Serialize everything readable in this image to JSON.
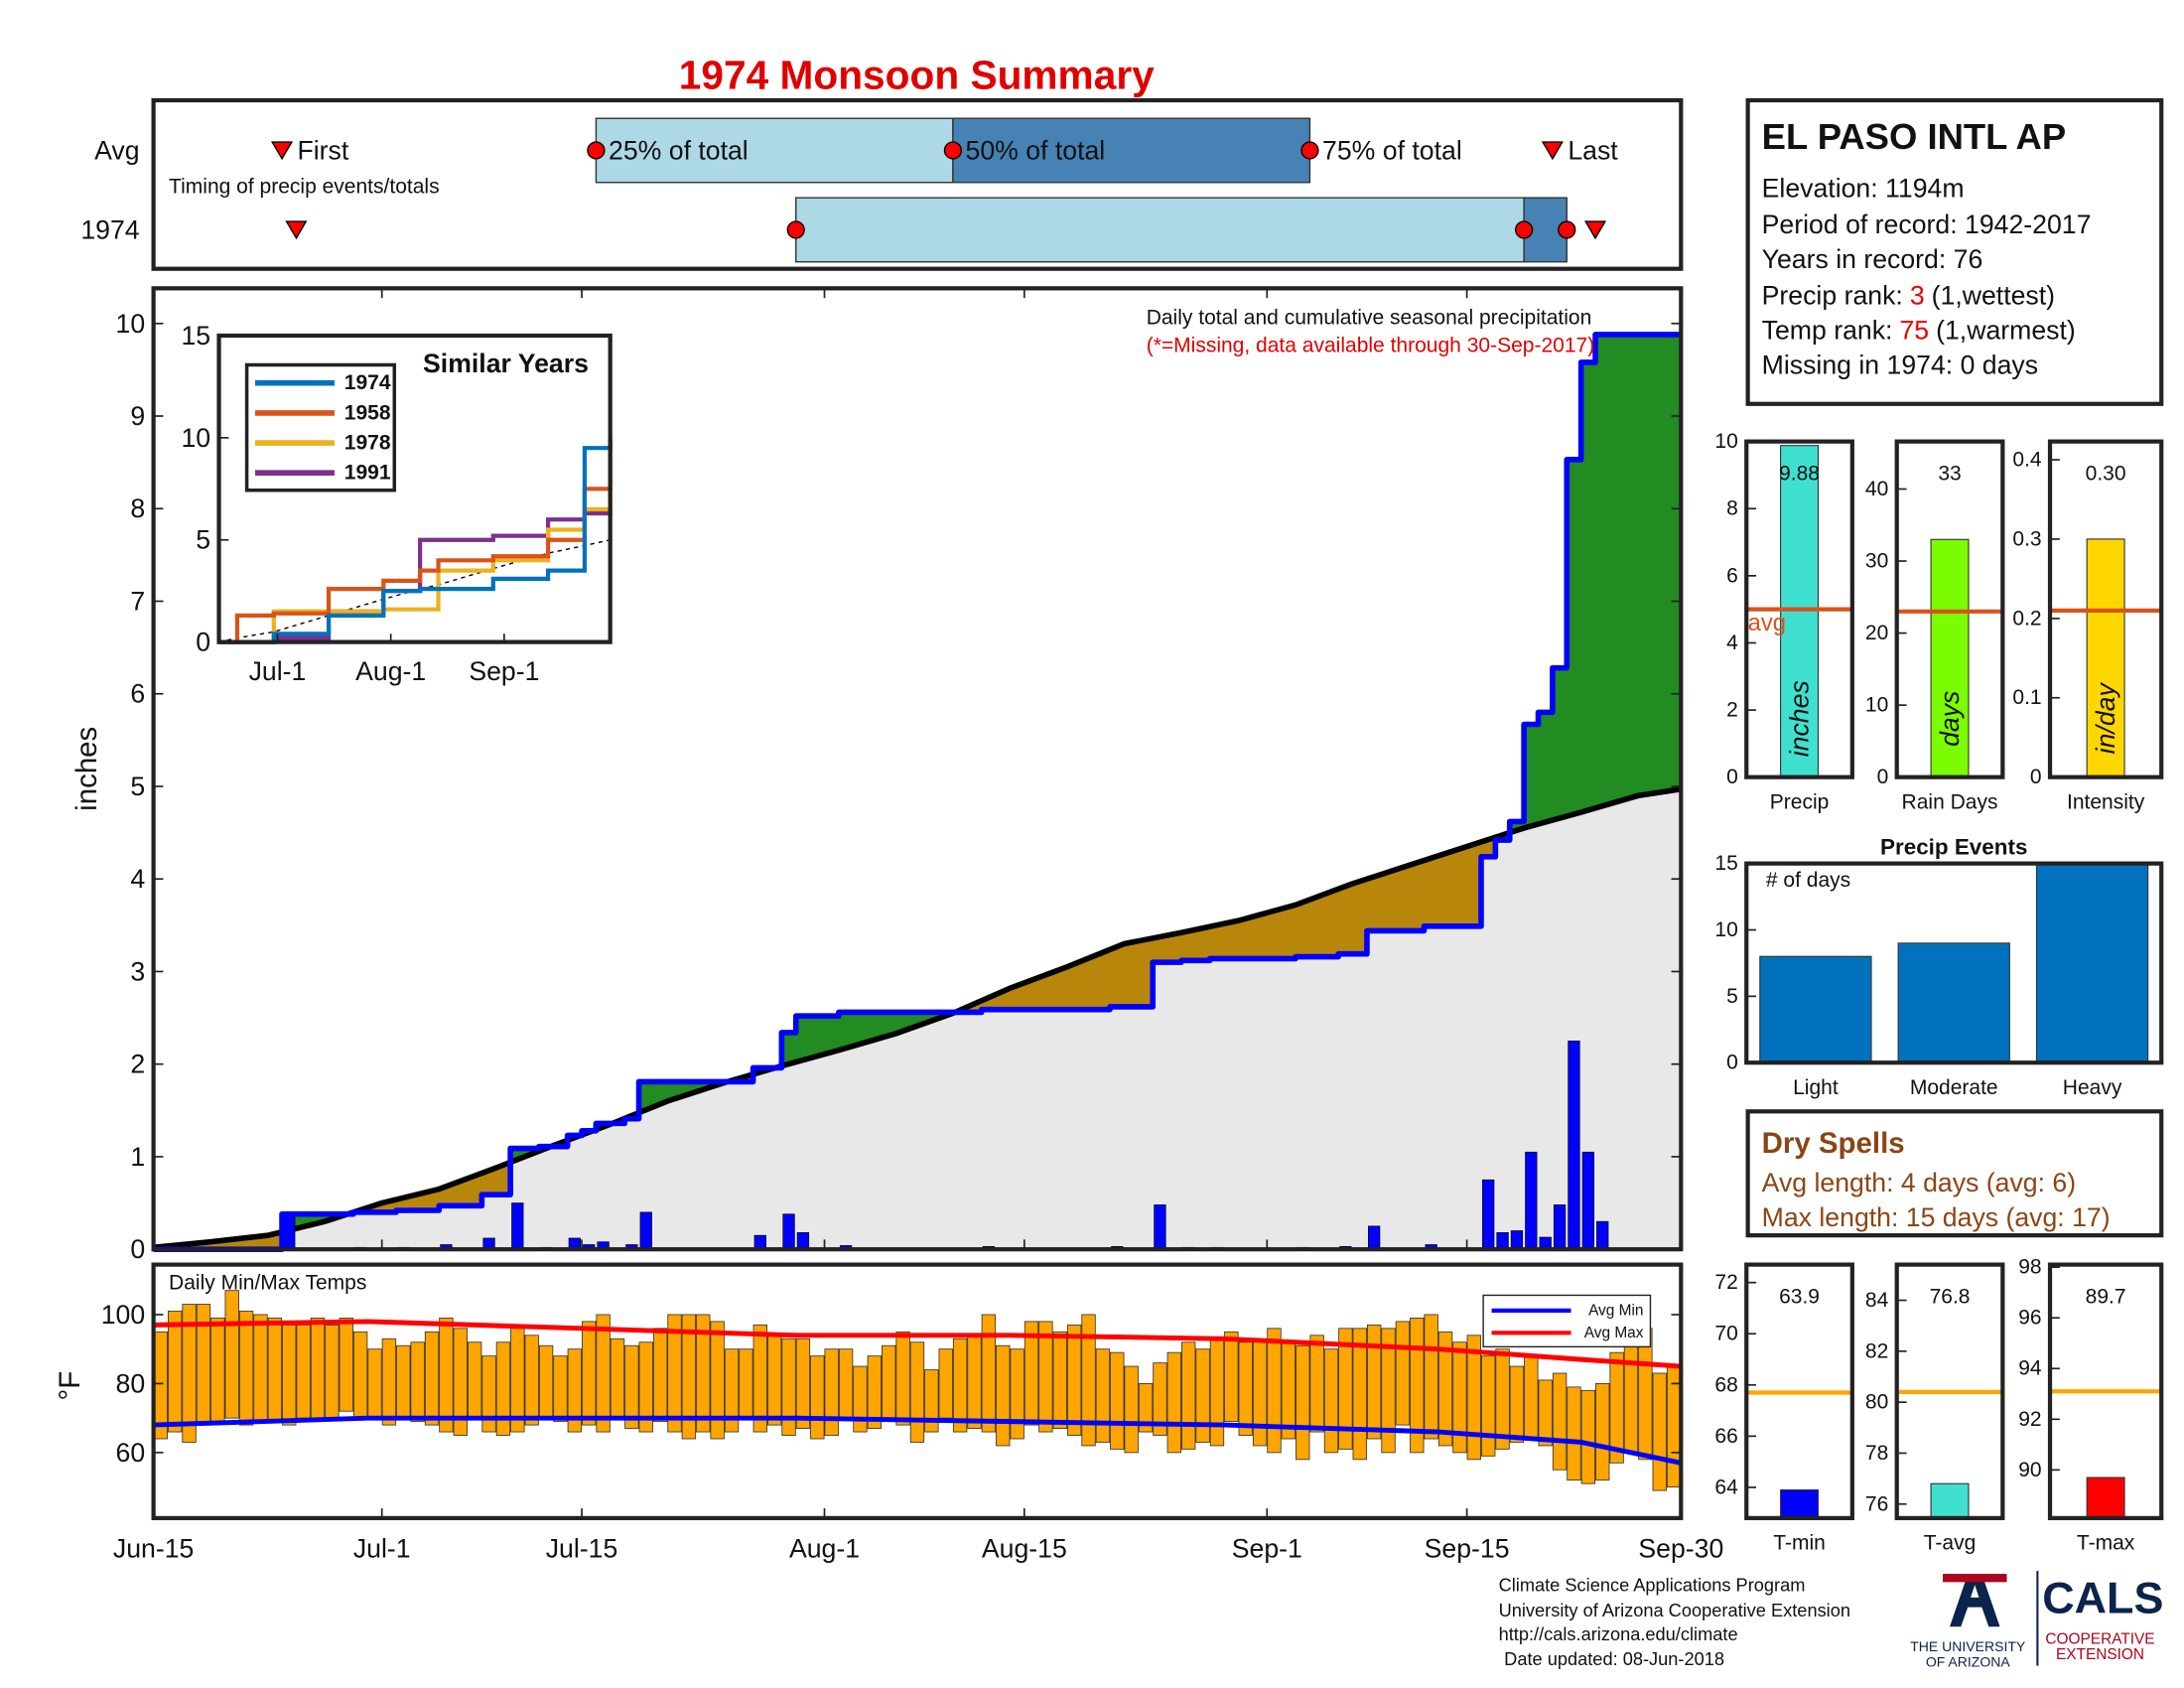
{
  "chart_data": [
    {
      "type": "timeline",
      "title": "1974 Monsoon Summary",
      "note": "Timing of precip events/totals",
      "xlim": [
        0,
        107
      ],
      "marker_labels": [
        "First",
        "25% of total",
        "50% of total",
        "75% of total",
        "Last"
      ],
      "colors": [
        "#add8e6",
        "#4682b4"
      ],
      "marker_color": "#ff0000",
      "series": [
        {
          "name": "Avg",
          "values": [
            9,
            31,
            56,
            81,
            98
          ]
        },
        {
          "name": "1974",
          "values": [
            10,
            45,
            96,
            99,
            101
          ]
        }
      ]
    },
    {
      "type": "precip",
      "ylabel": "inches",
      "title": "Daily total and cumulative seasonal precipitation",
      "subtitle": "(*=Missing, data available through 30-Sep-2017)",
      "xlim": [
        0,
        107
      ],
      "ylim": [
        0,
        10.38
      ],
      "yticks": [
        0,
        1,
        2,
        3,
        4,
        5,
        6,
        7,
        8,
        9,
        10
      ],
      "color": "#0000ff",
      "values": [
        0,
        0,
        0,
        0,
        0,
        0,
        0,
        0,
        0,
        0.38,
        0,
        0,
        0,
        0,
        0.02,
        0,
        0,
        0.02,
        0,
        0,
        0.05,
        0,
        0,
        0.12,
        0,
        0.5,
        0,
        0.02,
        0,
        0.12,
        0.05,
        0.08,
        0,
        0.05,
        0.4,
        0,
        0,
        0,
        0,
        0,
        0,
        0,
        0.15,
        0,
        0.38,
        0.18,
        0,
        0,
        0.04,
        0,
        0,
        0,
        0,
        0,
        0,
        0,
        0,
        0,
        0.03,
        0,
        0,
        0,
        0,
        0,
        0,
        0,
        0,
        0.03,
        0,
        0,
        0.48,
        0,
        0.02,
        0,
        0.02,
        0,
        0,
        0,
        0,
        0,
        0.02,
        0,
        0,
        0.03,
        0,
        0.25,
        0,
        0,
        0,
        0.05,
        0,
        0,
        0,
        0.75,
        0.18,
        0.2,
        1.05,
        0.13,
        0.48,
        2.25,
        1.05,
        0.3,
        0,
        0,
        0,
        0,
        0
      ],
      "avg": {
        "color": "#000000",
        "x": [
          0,
          4,
          8,
          12,
          16,
          20,
          24,
          28,
          32,
          36,
          40,
          44,
          48,
          52,
          56,
          60,
          64,
          68,
          72,
          76,
          80,
          84,
          88,
          92,
          96,
          100,
          104,
          107
        ],
        "values": [
          0.02,
          0.08,
          0.15,
          0.3,
          0.5,
          0.65,
          0.88,
          1.12,
          1.35,
          1.6,
          1.8,
          1.98,
          2.15,
          2.33,
          2.55,
          2.82,
          3.05,
          3.3,
          3.42,
          3.55,
          3.72,
          3.95,
          4.15,
          4.35,
          4.55,
          4.72,
          4.9,
          4.97
        ]
      },
      "fills": {
        "above": "#228b22",
        "below": "#b8860b",
        "base": "#e8e8e8"
      }
    },
    {
      "type": "lines",
      "title": "Similar Years",
      "xlim": [
        0,
        107
      ],
      "xticks": [
        {
          "value": 16,
          "label": "Jul-1"
        },
        {
          "value": 47,
          "label": "Aug-1"
        },
        {
          "value": 78,
          "label": "Sep-1"
        }
      ],
      "ylim": [
        0,
        15
      ],
      "yticks": [
        0,
        5,
        10,
        15
      ],
      "x": [
        0,
        5,
        15,
        30,
        45,
        55,
        60,
        75,
        90,
        100,
        107
      ],
      "series": [
        {
          "name": "1974",
          "color": "#0072bd",
          "values": [
            0,
            0,
            0.4,
            1.3,
            2.5,
            2.6,
            2.6,
            3.1,
            3.5,
            9.5,
            9.9
          ]
        },
        {
          "name": "1958",
          "color": "#d95319",
          "values": [
            0,
            1.3,
            1.4,
            2.6,
            3.0,
            3.5,
            4.0,
            4.2,
            5.0,
            7.5,
            10.0
          ]
        },
        {
          "name": "1978",
          "color": "#edb120",
          "values": [
            0,
            0,
            1.5,
            1.5,
            1.6,
            1.6,
            3.5,
            4.0,
            5.5,
            6.5,
            8.0
          ]
        },
        {
          "name": "1991",
          "color": "#7e2f8e",
          "values": [
            0,
            0,
            0.2,
            1.5,
            2.5,
            5.0,
            5.0,
            5.2,
            6.0,
            6.3,
            6.5
          ]
        }
      ],
      "avg": [
        0,
        0.2,
        0.5,
        1.3,
        2.1,
        2.6,
        2.8,
        3.6,
        4.35,
        4.72,
        5.0
      ]
    },
    {
      "type": "range",
      "title": "Daily Min/Max Temps",
      "ylabel": "°F",
      "xlim": [
        0,
        107
      ],
      "xticks": [
        {
          "value": 0,
          "label": "Jun-15"
        },
        {
          "value": 16,
          "label": "Jul-1"
        },
        {
          "value": 30,
          "label": "Jul-15"
        },
        {
          "value": 47,
          "label": "Aug-1"
        },
        {
          "value": 61,
          "label": "Aug-15"
        },
        {
          "value": 78,
          "label": "Sep-1"
        },
        {
          "value": 92,
          "label": "Sep-15"
        },
        {
          "value": 107,
          "label": "Sep-30"
        }
      ],
      "ylim": [
        41,
        114.5
      ],
      "yticks": [
        60,
        80,
        100
      ],
      "color": "#ffa500",
      "max": [
        95,
        101,
        103,
        103,
        99,
        107,
        101,
        100,
        99,
        97,
        97,
        99,
        97,
        99,
        95,
        90,
        93,
        91,
        92,
        95,
        99,
        96,
        92,
        88,
        92,
        96,
        94,
        91,
        88,
        90,
        98,
        100,
        93,
        91,
        92,
        96,
        100,
        100,
        100,
        98,
        90,
        90,
        97,
        94,
        93,
        93,
        88,
        90,
        90,
        85,
        88,
        91,
        95,
        92,
        84,
        90,
        93,
        94,
        100,
        91,
        90,
        98,
        98,
        95,
        97,
        100,
        90,
        89,
        85,
        80,
        86,
        89,
        92,
        90,
        93,
        95,
        92,
        93,
        96,
        92,
        91,
        94,
        90,
        96,
        96,
        97,
        96,
        98,
        99,
        100,
        95,
        92,
        94,
        88,
        90,
        85,
        88,
        81,
        83,
        79,
        78,
        80,
        89,
        91,
        96,
        83,
        85
      ],
      "min": [
        64,
        66,
        63,
        68,
        69,
        70,
        68,
        69,
        69,
        68,
        70,
        70,
        70,
        72,
        70,
        70,
        68,
        70,
        69,
        68,
        66,
        65,
        70,
        66,
        65,
        66,
        68,
        70,
        69,
        66,
        68,
        66,
        70,
        67,
        66,
        69,
        66,
        64,
        66,
        64,
        66,
        70,
        66,
        68,
        65,
        67,
        64,
        65,
        70,
        66,
        67,
        69,
        68,
        63,
        66,
        70,
        66,
        67,
        66,
        62,
        64,
        68,
        66,
        67,
        65,
        62,
        63,
        61,
        60,
        66,
        65,
        60,
        61,
        63,
        62,
        69,
        65,
        62,
        60,
        64,
        58,
        66,
        60,
        61,
        58,
        64,
        60,
        68,
        60,
        64,
        62,
        60,
        58,
        59,
        61,
        63,
        64,
        62,
        55,
        52,
        51,
        52,
        57,
        60,
        58,
        49,
        50
      ],
      "series": [
        {
          "name": "Avg Min",
          "color": "#0000ff",
          "x": [
            0,
            15,
            30,
            45,
            60,
            75,
            90,
            100,
            107
          ],
          "values": [
            68,
            70,
            70,
            70,
            69,
            68,
            66,
            63,
            57
          ]
        },
        {
          "name": "Avg Max",
          "color": "#ff0000",
          "x": [
            0,
            15,
            30,
            45,
            60,
            75,
            90,
            100,
            107
          ],
          "values": [
            97,
            98,
            96,
            94,
            94,
            93,
            90,
            87,
            85
          ]
        }
      ]
    },
    {
      "type": "bar",
      "categories": [
        "Precip"
      ],
      "values": [
        9.88
      ],
      "color": "#40e0d0",
      "unit": "inches",
      "avg": 5.0,
      "avg_color": "#d95319",
      "avg_label": "avg",
      "ylim": [
        0,
        10
      ],
      "yticks": [
        0,
        2,
        4,
        6,
        8,
        10
      ]
    },
    {
      "type": "bar",
      "categories": [
        "Rain Days"
      ],
      "values": [
        33
      ],
      "color": "#7cfc00",
      "unit": "days",
      "avg": 23,
      "avg_color": "#d95319",
      "ylim": [
        0,
        46.6
      ],
      "yticks": [
        0,
        10,
        20,
        30,
        40
      ]
    },
    {
      "type": "bar",
      "categories": [
        "Intensity"
      ],
      "values": [
        0.3
      ],
      "value_labels": [
        "0.30"
      ],
      "color": "#ffd700",
      "unit": "in/day",
      "avg": 0.21,
      "avg_color": "#d95319",
      "ylim": [
        0,
        0.423
      ],
      "yticks": [
        0,
        0.1,
        0.2,
        0.3,
        0.4
      ]
    },
    {
      "type": "bar",
      "title": "Precip Events",
      "ylabel": "# of days",
      "categories": [
        "Light",
        "Moderate",
        "Heavy"
      ],
      "values": [
        8,
        9,
        15
      ],
      "color": "#0072bd",
      "ylim": [
        0,
        15
      ],
      "yticks": [
        0,
        5,
        10,
        15
      ]
    },
    {
      "type": "bar",
      "categories": [
        "T-min"
      ],
      "values": [
        63.9
      ],
      "color": "#0000ff",
      "avg": 67.7,
      "avg_color": "#ffa500",
      "ylim": [
        62.8,
        72.7
      ],
      "yticks": [
        64,
        66,
        68,
        70,
        72
      ]
    },
    {
      "type": "bar",
      "categories": [
        "T-avg"
      ],
      "values": [
        76.8
      ],
      "color": "#40e0d0",
      "avg": 80.4,
      "avg_color": "#ffa500",
      "ylim": [
        75.45,
        85.4
      ],
      "yticks": [
        76,
        78,
        80,
        82,
        84
      ]
    },
    {
      "type": "bar",
      "categories": [
        "T-max"
      ],
      "values": [
        89.7
      ],
      "color": "#ff0000",
      "avg": 93.1,
      "avg_color": "#ffa500",
      "ylim": [
        88.1,
        98.1
      ],
      "yticks": [
        90,
        92,
        94,
        96,
        98
      ]
    }
  ],
  "station": {
    "name": "EL PASO INTL AP",
    "lines": [
      "Elevation: 1194m",
      "Period of record: 1942-2017",
      "Years in record: 76"
    ],
    "ranks": [
      {
        "label": "Precip rank:",
        "rank": 3,
        "note": "(1,wettest)"
      },
      {
        "label": "Temp rank:",
        "rank": 75,
        "note": "(1,warmest)"
      }
    ],
    "missing": "Missing in 1974: 0 days"
  },
  "dry_spells": {
    "title": "Dry Spells",
    "lines": [
      "Avg length: 4 days (avg: 6)",
      "Max length: 15 days (avg: 17)"
    ]
  },
  "footer": [
    "Climate Science Applications Program",
    "University of Arizona Cooperative Extension",
    "http://cals.arizona.edu/climate",
    "Date updated: 08-Jun-2018"
  ],
  "logo": {
    "university": [
      "THE UNIVERSITY",
      "OF ARIZONA"
    ],
    "cals": "CALS",
    "extension": [
      "COOPERATIVE",
      "EXTENSION"
    ]
  }
}
